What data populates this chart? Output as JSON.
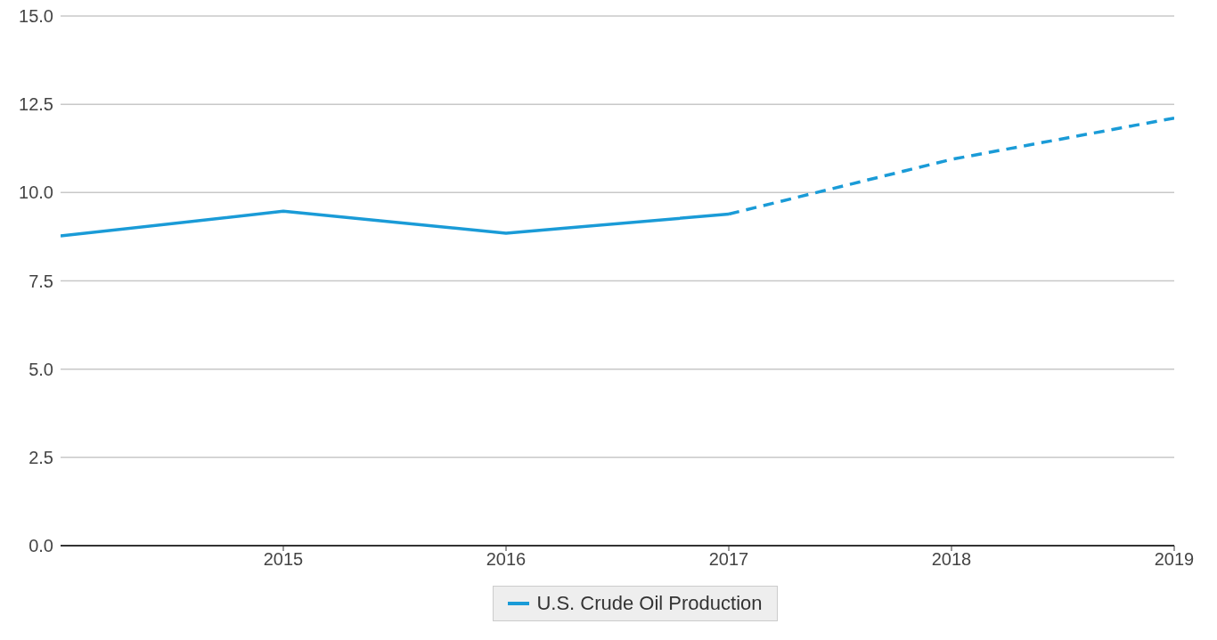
{
  "chart_data": {
    "type": "line",
    "series": [
      {
        "name": "U.S. Crude Oil Production",
        "color": "#1a9bd7",
        "x": [
          2014,
          2015,
          2016,
          2017
        ],
        "values": [
          8.77,
          9.47,
          8.85,
          9.39
        ],
        "line_style": "solid"
      },
      {
        "color": "#1a9bd7",
        "x": [
          2017,
          2018,
          2019
        ],
        "values": [
          9.39,
          10.94,
          12.11
        ],
        "line_style": "dashed"
      }
    ],
    "xlim": [
      2014,
      2019
    ],
    "xticks": [
      2015,
      2016,
      2017,
      2018,
      2019
    ],
    "ylim": [
      0,
      15
    ],
    "yticks": [
      {
        "value": 0,
        "label": "0.0"
      },
      {
        "value": 2.5,
        "label": "2.5"
      },
      {
        "value": 5,
        "label": "5.0"
      },
      {
        "value": 7.5,
        "label": "7.5"
      },
      {
        "value": 10,
        "label": "10.0"
      },
      {
        "value": 12.5,
        "label": "12.5"
      },
      {
        "value": 15,
        "label": "15.0"
      }
    ],
    "grid": "y",
    "legend": "bottom",
    "marker": "none"
  }
}
